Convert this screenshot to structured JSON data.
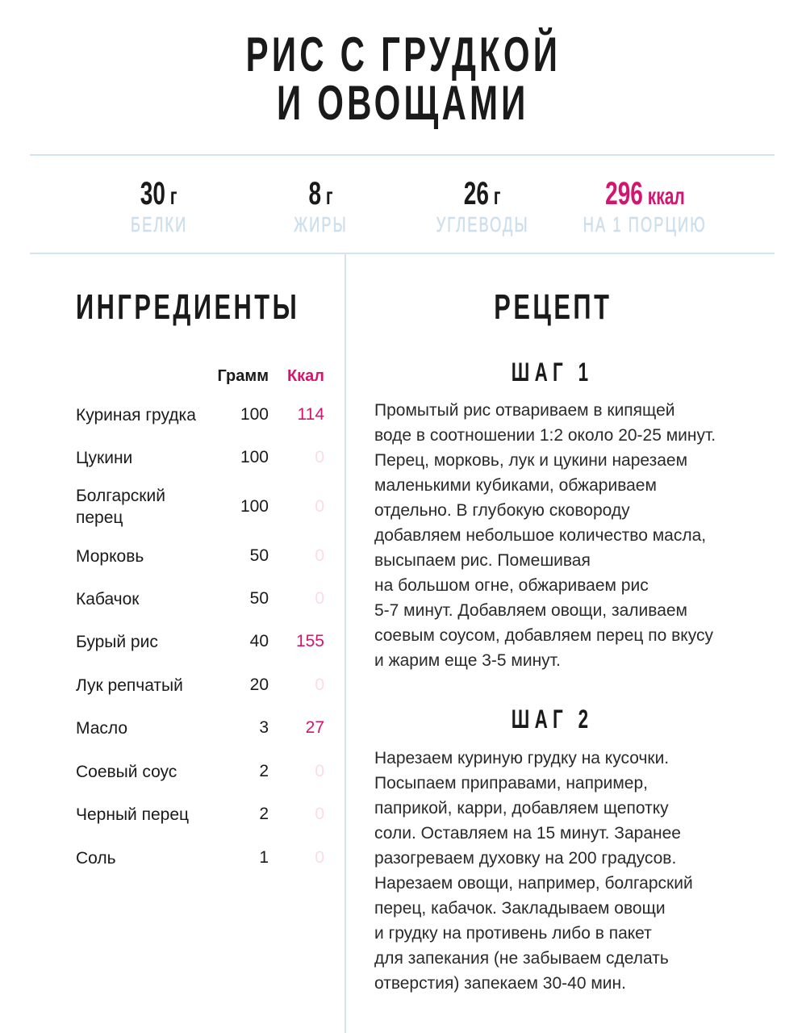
{
  "title": [
    "РИС С ГРУДКОЙ",
    "И ОВОЩАМИ"
  ],
  "nutrition": [
    {
      "value": "30",
      "unit": "г",
      "label": "БЕЛКИ"
    },
    {
      "value": "8",
      "unit": "г",
      "label": "ЖИРЫ"
    },
    {
      "value": "26",
      "unit": "г",
      "label": "УГЛЕВОДЫ"
    },
    {
      "value": "296",
      "unit": "ккал",
      "label": "НА 1 ПОРЦИЮ"
    }
  ],
  "ingredients": {
    "heading": "ИНГРЕДИЕНТЫ",
    "columns": [
      "Грамм",
      "Ккал"
    ],
    "rows": [
      [
        "Куриная грудка",
        100,
        114
      ],
      [
        "Цукини",
        100,
        0
      ],
      [
        "Болгарский перец",
        100,
        0
      ],
      [
        "Морковь",
        50,
        0
      ],
      [
        "Кабачок",
        50,
        0
      ],
      [
        "Бурый рис",
        40,
        155
      ],
      [
        "Лук репчатый",
        20,
        0
      ],
      [
        "Масло",
        3,
        27
      ],
      [
        "Соевый соус",
        2,
        0
      ],
      [
        "Черный перец",
        2,
        0
      ],
      [
        "Соль",
        1,
        0
      ]
    ]
  },
  "recipe": {
    "heading": "РЕЦЕПТ",
    "steps": [
      {
        "title": "ШАГ 1",
        "lines": [
          "Промытый рис отвариваем в кипящей",
          "воде в соотношении 1:2 около 20-25 минут.",
          "Перец, морковь, лук и цукини нарезаем",
          "маленькими кубиками, обжариваем",
          "отдельно. В глубокую сковороду",
          "добавляем небольшое количество масла,",
          "высыпаем рис. Помешивая",
          "на большом огне, обжариваем рис",
          "5-7 минут. Добавляем овощи, заливаем",
          "соевым соусом, добавляем перец по вкусу",
          "и жарим еще 3-5 минут."
        ]
      },
      {
        "title": "ШАГ 2",
        "lines": [
          "Нарезаем куриную грудку на кусочки.",
          "Посыпаем приправами, например,",
          "паприкой, карри, добавляем щепотку",
          "соли. Оставляем на 15 минут. Заранее",
          "разогреваем духовку на 200 градусов.",
          "Нарезаем овощи, например, болгарский",
          "перец, кабачок. Закладываем овощи",
          "и грудку на противень либо в пакет",
          "для запекания (не забываем сделать",
          "отверстия) запекаем 30-40 мин."
        ]
      }
    ]
  }
}
